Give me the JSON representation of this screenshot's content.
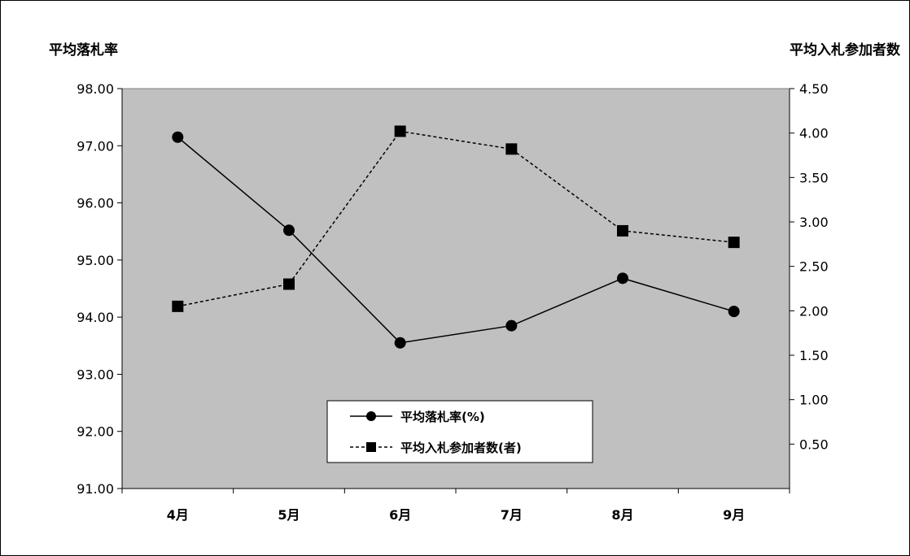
{
  "chart_data": {
    "type": "line",
    "categories": [
      "4月",
      "5月",
      "6月",
      "7月",
      "8月",
      "9月"
    ],
    "y_left_title": "平均落札率",
    "y_right_title": "平均入札参加者数",
    "y_left_ticks": [
      "98.00",
      "97.00",
      "96.00",
      "95.00",
      "94.00",
      "93.00",
      "92.00",
      "91.00"
    ],
    "y_right_ticks": [
      "4.50",
      "4.00",
      "3.50",
      "3.00",
      "2.50",
      "2.00",
      "1.50",
      "1.00",
      "0.50"
    ],
    "y_left_range": [
      91,
      98
    ],
    "y_right_range": [
      0,
      4.5
    ],
    "series": [
      {
        "name": "平均落札率(%)",
        "axis": "left",
        "line": "solid",
        "marker": "circle",
        "values": [
          97.15,
          95.52,
          93.55,
          93.85,
          94.68,
          94.1
        ]
      },
      {
        "name": "平均入札参加者数(者)",
        "axis": "right",
        "line": "dashed",
        "marker": "square",
        "values": [
          2.05,
          2.3,
          4.02,
          3.82,
          2.9,
          2.77
        ]
      }
    ],
    "legend_position": "bottom-center",
    "plot_background": "#c0c0c0",
    "grid": false
  }
}
